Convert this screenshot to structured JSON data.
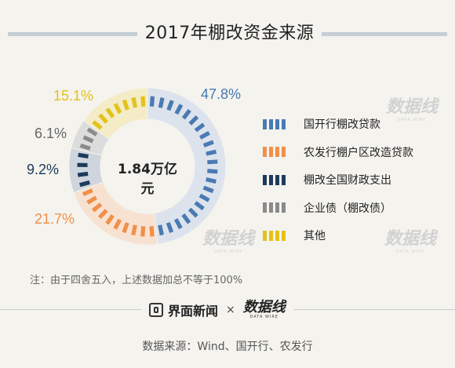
{
  "title": "2017年棚改资金来源",
  "center_label": "1.84万亿元",
  "note": "注：由于四舍五入，上述数据加总不等于100%",
  "footer": {
    "brand": "界面新闻",
    "times": "×",
    "brand2": "数据线",
    "brand2_sub": "DATA WIRE"
  },
  "source": "数据来源：Wind、国开行、农发行",
  "watermark": {
    "text": "数据线",
    "sub": "DATA WIRE"
  },
  "chart_data": {
    "type": "pie",
    "title": "2017年棚改资金来源",
    "total_label": "1.84万亿元",
    "categories": [
      "国开行棚改贷款",
      "农发行棚户区改造贷款",
      "棚改全国财政支出",
      "企业债（棚改债）",
      "其他"
    ],
    "values": [
      47.8,
      21.7,
      9.2,
      6.1,
      15.1
    ],
    "value_labels": [
      "47.8%",
      "21.7%",
      "9.2%",
      "6.1%",
      "15.1%"
    ],
    "colors": [
      "#4a7ab3",
      "#f0904a",
      "#1e3a5c",
      "#8a8a8a",
      "#e3c21a"
    ],
    "legend_position": "right"
  }
}
